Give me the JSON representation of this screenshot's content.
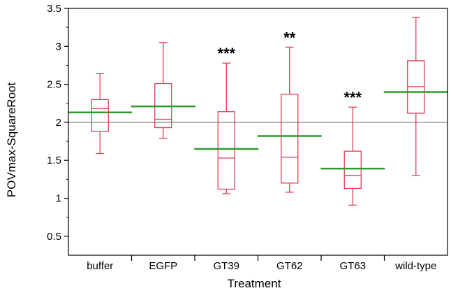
{
  "chart_data": {
    "type": "box",
    "title": "",
    "xlabel": "Treatment",
    "ylabel": "POVmax-SquareRoot",
    "ylim": [
      0.25,
      3.5
    ],
    "yticks": [
      "0.5",
      "1",
      "1.5",
      "2",
      "2.5",
      "3",
      "3.5"
    ],
    "ytick_values": [
      0.5,
      1,
      1.5,
      2,
      2.5,
      3,
      3.5
    ],
    "minor_ticks": true,
    "grid": false,
    "reference_line": 2.0,
    "categories": [
      "buffer",
      "EGFP",
      "GT39",
      "GT62",
      "GT63",
      "wild-type"
    ],
    "boxes": [
      {
        "min": 1.59,
        "q1": 1.88,
        "median": 2.18,
        "q3": 2.3,
        "max": 2.64,
        "mean": 2.13,
        "annotation": ""
      },
      {
        "min": 1.79,
        "q1": 1.93,
        "median": 2.04,
        "q3": 2.51,
        "max": 3.05,
        "mean": 2.21,
        "annotation": ""
      },
      {
        "min": 1.06,
        "q1": 1.12,
        "median": 1.53,
        "q3": 2.14,
        "max": 2.78,
        "mean": 1.65,
        "annotation": "***"
      },
      {
        "min": 1.08,
        "q1": 1.2,
        "median": 1.54,
        "q3": 2.37,
        "max": 2.99,
        "mean": 1.82,
        "annotation": "**"
      },
      {
        "min": 0.91,
        "q1": 1.13,
        "median": 1.3,
        "q3": 1.62,
        "max": 2.2,
        "mean": 1.39,
        "annotation": "***"
      },
      {
        "min": 1.3,
        "q1": 2.12,
        "median": 2.47,
        "q3": 2.81,
        "max": 3.38,
        "mean": 2.4,
        "annotation": ""
      }
    ],
    "colors": {
      "box": "#e03c5a",
      "mean": "#2e9a2e",
      "reference": "#999999",
      "axis": "#000000"
    }
  }
}
